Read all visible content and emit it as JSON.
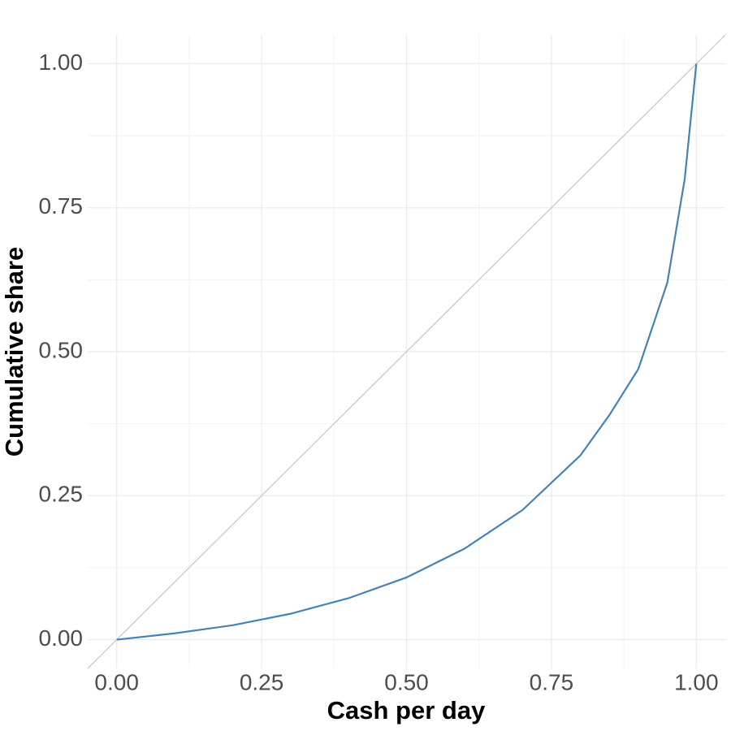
{
  "chart_data": {
    "type": "line",
    "x_label": "Cash per day",
    "y_label": "Cumulative share",
    "x": [
      0,
      0.1,
      0.2,
      0.3,
      0.4,
      0.5,
      0.6,
      0.7,
      0.8,
      0.85,
      0.9,
      0.95,
      0.98,
      1.0
    ],
    "values": [
      0,
      0.011,
      0.025,
      0.045,
      0.072,
      0.108,
      0.158,
      0.225,
      0.32,
      0.39,
      0.47,
      0.62,
      0.8,
      1.0
    ],
    "color": "#4682b4",
    "xlim": [
      -0.05,
      1.05
    ],
    "ylim": [
      -0.05,
      1.05
    ],
    "xticks": [
      {
        "value": 0,
        "label": "0.00"
      },
      {
        "value": 0.25,
        "label": "0.25"
      },
      {
        "value": 0.5,
        "label": "0.50"
      },
      {
        "value": 0.75,
        "label": "0.75"
      },
      {
        "value": 1,
        "label": "1.00"
      }
    ],
    "yticks": [
      {
        "value": 0,
        "label": "0.00"
      },
      {
        "value": 0.25,
        "label": "0.25"
      },
      {
        "value": 0.5,
        "label": "0.50"
      },
      {
        "value": 0.75,
        "label": "0.75"
      },
      {
        "value": 1,
        "label": "1.00"
      }
    ],
    "grid": true,
    "diagonal_reference": true
  }
}
